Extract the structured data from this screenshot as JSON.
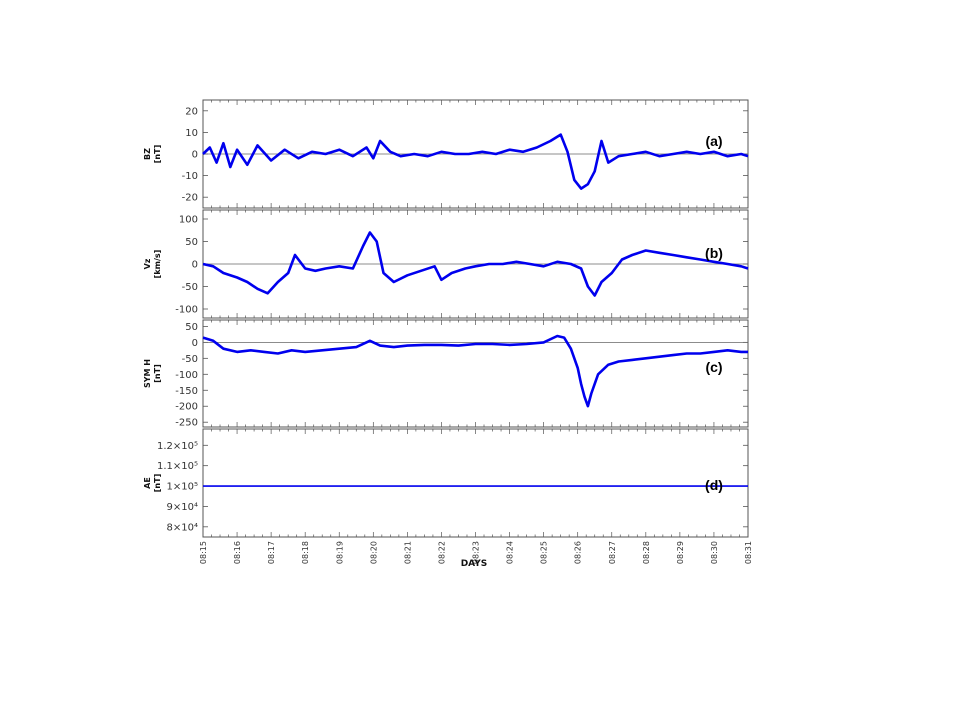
{
  "chart_data": {
    "type": "line",
    "xlabel": "DAYS",
    "x_ticks": [
      "08:15",
      "08:16",
      "08:17",
      "08:18",
      "08:19",
      "08:20",
      "08:21",
      "08:22",
      "08:23",
      "08:24",
      "08:25",
      "08:26",
      "08:27",
      "08:28",
      "08:29",
      "08:30",
      "08:31"
    ],
    "x_range": [
      15,
      31
    ],
    "line_color": "#0000ee",
    "panels": [
      {
        "id": "a",
        "label": "(a)",
        "ylabel": "BZ",
        "yunit": "[nT]",
        "ylim": [
          -25,
          25
        ],
        "yticks": [
          "20",
          "10",
          "0",
          "-10",
          "-20"
        ],
        "ytick_values": [
          20,
          10,
          0,
          -10,
          -20
        ],
        "zero_line": 0,
        "series": [
          {
            "x": [
              15,
              15.2,
              15.4,
              15.6,
              15.8,
              16,
              16.3,
              16.6,
              17,
              17.4,
              17.8,
              18.2,
              18.6,
              19,
              19.4,
              19.8,
              20,
              20.2,
              20.5,
              20.8,
              21.2,
              21.6,
              22,
              22.4,
              22.8,
              23.2,
              23.6,
              24,
              24.4,
              24.8,
              25.2,
              25.5,
              25.7,
              25.9,
              26.1,
              26.3,
              26.5,
              26.7,
              26.9,
              27.2,
              27.6,
              28,
              28.4,
              28.8,
              29.2,
              29.6,
              30,
              30.4,
              30.8,
              31
            ],
            "y": [
              0,
              3,
              -4,
              5,
              -6,
              2,
              -5,
              4,
              -3,
              2,
              -2,
              1,
              0,
              2,
              -1,
              3,
              -2,
              6,
              1,
              -1,
              0,
              -1,
              1,
              0,
              0,
              1,
              0,
              2,
              1,
              3,
              6,
              9,
              1,
              -12,
              -16,
              -14,
              -8,
              6,
              -4,
              -1,
              0,
              1,
              -1,
              0,
              1,
              0,
              1,
              -1,
              0,
              -1
            ]
          }
        ]
      },
      {
        "id": "b",
        "label": "(b)",
        "ylabel": "Vz",
        "yunit": "[km/s]",
        "ylim": [
          -120,
          120
        ],
        "yticks": [
          "100",
          "50",
          "0",
          "-50",
          "-100"
        ],
        "ytick_values": [
          100,
          50,
          0,
          -50,
          -100
        ],
        "zero_line": 0,
        "series": [
          {
            "x": [
              15,
              15.3,
              15.6,
              16,
              16.3,
              16.6,
              16.9,
              17.2,
              17.5,
              17.7,
              18,
              18.3,
              18.6,
              19,
              19.4,
              19.7,
              19.9,
              20.1,
              20.3,
              20.6,
              21,
              21.4,
              21.8,
              22,
              22.3,
              22.7,
              23,
              23.4,
              23.8,
              24.2,
              24.6,
              25,
              25.4,
              25.8,
              26.1,
              26.3,
              26.5,
              26.7,
              27,
              27.3,
              27.6,
              28,
              28.4,
              28.8,
              29.2,
              29.6,
              30,
              30.4,
              30.8,
              31
            ],
            "y": [
              0,
              -5,
              -20,
              -30,
              -40,
              -55,
              -65,
              -40,
              -20,
              20,
              -10,
              -15,
              -10,
              -5,
              -10,
              40,
              70,
              50,
              -20,
              -40,
              -25,
              -15,
              -5,
              -35,
              -20,
              -10,
              -5,
              0,
              0,
              5,
              0,
              -5,
              5,
              0,
              -10,
              -50,
              -70,
              -40,
              -20,
              10,
              20,
              30,
              25,
              20,
              15,
              10,
              5,
              0,
              -5,
              -10
            ]
          }
        ]
      },
      {
        "id": "c",
        "label": "(c)",
        "ylabel": "SYM H",
        "yunit": "[nT]",
        "ylim": [
          -265,
          70
        ],
        "yticks": [
          "50",
          "0",
          "-50",
          "-100",
          "-150",
          "-200",
          "-250"
        ],
        "ytick_values": [
          50,
          0,
          -50,
          -100,
          -150,
          -200,
          -250
        ],
        "zero_line": 0,
        "series": [
          {
            "x": [
              15,
              15.3,
              15.6,
              16,
              16.4,
              16.8,
              17.2,
              17.6,
              18,
              18.5,
              19,
              19.5,
              19.9,
              20.2,
              20.6,
              21,
              21.5,
              22,
              22.5,
              23,
              23.5,
              24,
              24.5,
              25,
              25.4,
              25.6,
              25.8,
              26,
              26.1,
              26.2,
              26.3,
              26.4,
              26.6,
              26.9,
              27.2,
              27.6,
              28,
              28.4,
              28.8,
              29.2,
              29.6,
              30,
              30.4,
              30.8,
              31
            ],
            "y": [
              15,
              5,
              -20,
              -30,
              -25,
              -30,
              -35,
              -25,
              -30,
              -25,
              -20,
              -15,
              5,
              -10,
              -15,
              -10,
              -8,
              -8,
              -10,
              -5,
              -5,
              -8,
              -5,
              0,
              20,
              15,
              -20,
              -80,
              -130,
              -170,
              -200,
              -160,
              -100,
              -70,
              -60,
              -55,
              -50,
              -45,
              -40,
              -35,
              -35,
              -30,
              -25,
              -30,
              -30
            ]
          }
        ]
      },
      {
        "id": "d",
        "label": "(d)",
        "ylabel": "AE",
        "yunit": "[nT]",
        "ylim": [
          75000,
          128000
        ],
        "yticks": [
          "1.2×10⁵",
          "1.1×10⁵",
          "1×10⁵",
          "9×10⁴",
          "8×10⁴"
        ],
        "ytick_values": [
          120000,
          110000,
          100000,
          90000,
          80000
        ],
        "series": [
          {
            "x": [
              15,
              31
            ],
            "y": [
              100000,
              100000
            ]
          }
        ]
      }
    ]
  }
}
